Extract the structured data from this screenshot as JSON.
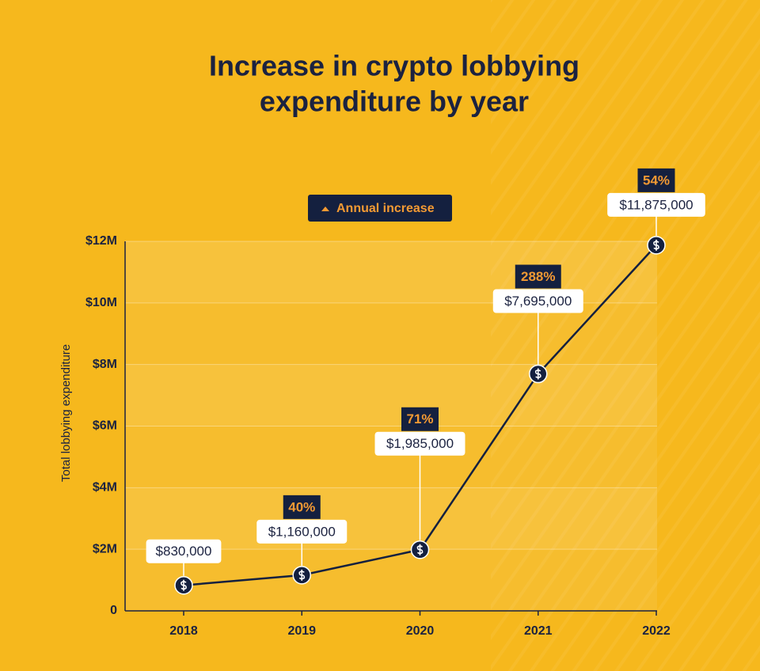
{
  "chart_data": {
    "type": "line",
    "title": "Increase in crypto lobbying",
    "subtitle": "expenditure by year",
    "y_label": "Total lobbying expenditure",
    "categories": [
      "2018",
      "2019",
      "2020",
      "2021",
      "2022"
    ],
    "values": [
      830000,
      1160000,
      1985000,
      7695000,
      11875000
    ],
    "value_labels": [
      "$830,000",
      "$1,160,000",
      "$1,985,000",
      "$7,695,000",
      "$11,875,000"
    ],
    "color": "#14203f",
    "annual_increase": {
      "name": "Annual increase",
      "color": "#f39a33",
      "values": [
        null,
        40,
        71,
        288,
        54
      ],
      "value_labels": [
        null,
        "40%",
        "71%",
        "288%",
        "54%"
      ]
    },
    "ylim": [
      0,
      12000000
    ],
    "yticks": [
      0,
      {
        "value": 2000000,
        "label": "$2M"
      },
      {
        "value": 4000000,
        "label": "$4M"
      },
      {
        "value": 6000000,
        "label": "$6M"
      },
      {
        "value": 8000000,
        "label": "$8M"
      },
      {
        "value": 10000000,
        "label": "$10M"
      },
      {
        "value": 12000000,
        "label": "$12M"
      }
    ],
    "grid": true
  }
}
